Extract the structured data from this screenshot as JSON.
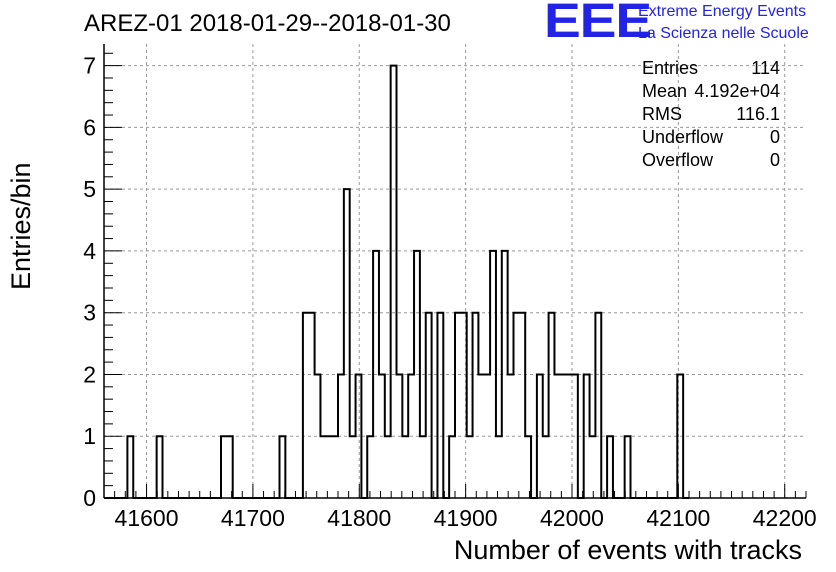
{
  "chart_data": {
    "type": "histogram",
    "title": "AREZ-01 2018-01-29--2018-01-30",
    "xlabel": "Number of events with tracks",
    "ylabel": "Entries/bin",
    "xlim": [
      41560,
      42220
    ],
    "ylim": [
      0,
      7.35
    ],
    "bin_start": 41560,
    "bin_width": 5.5,
    "x_ticks": [
      41600,
      41700,
      41800,
      41900,
      42000,
      42100,
      42200
    ],
    "x_tick_labels": [
      "41600",
      "41700",
      "41800",
      "41900",
      "42000",
      "42100",
      "42200"
    ],
    "y_ticks": [
      0,
      1,
      2,
      3,
      4,
      5,
      6,
      7
    ],
    "y_tick_labels": [
      "0",
      "1",
      "2",
      "3",
      "4",
      "5",
      "6",
      "7"
    ],
    "grid": true,
    "counts": [
      0,
      0,
      0,
      0,
      1,
      0,
      0,
      0,
      0,
      1,
      0,
      0,
      0,
      0,
      0,
      0,
      0,
      0,
      0,
      0,
      1,
      1,
      0,
      0,
      0,
      0,
      0,
      0,
      0,
      0,
      1,
      0,
      0,
      0,
      3,
      3,
      2,
      1,
      1,
      1,
      2,
      5,
      1,
      2,
      0,
      1,
      4,
      2,
      1,
      7,
      2,
      1,
      2,
      4,
      1,
      3,
      0,
      3,
      0,
      1,
      3,
      3,
      1,
      3,
      2,
      2,
      4,
      1,
      4,
      2,
      3,
      3,
      1,
      0,
      2,
      1,
      3,
      2,
      2,
      2,
      2,
      0,
      2,
      1,
      3,
      0,
      1,
      0,
      0,
      1,
      0,
      0,
      0,
      0,
      0,
      0,
      0,
      0,
      2,
      0
    ]
  },
  "stats": {
    "rows": [
      {
        "label": "Entries",
        "value": "114"
      },
      {
        "label": "Mean",
        "value": "4.192e+04"
      },
      {
        "label": "RMS",
        "value": "116.1"
      },
      {
        "label": "Underflow",
        "value": "0"
      },
      {
        "label": "Overflow",
        "value": "0"
      }
    ]
  },
  "branding": {
    "logo": "EEE",
    "line1": "Extreme Energy Events",
    "line2": "La Scienza nelle Scuole"
  },
  "colors": {
    "branding": "#2323e6",
    "histogram_line": "#000000",
    "grid": "#9a9a9a"
  }
}
